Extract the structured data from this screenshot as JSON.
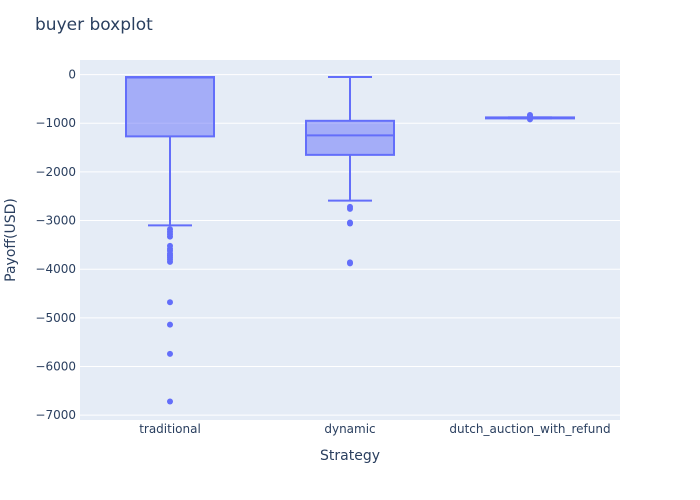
{
  "chart_data": {
    "type": "box",
    "title": "buyer boxplot",
    "xlabel": "Strategy",
    "ylabel": "Payoff(USD)",
    "categories": [
      "traditional",
      "dynamic",
      "dutch_auction_with_refund"
    ],
    "ylim": [
      -7100,
      300
    ],
    "yticks": [
      0,
      -1000,
      -2000,
      -3000,
      -4000,
      -5000,
      -6000,
      -7000
    ],
    "ytick_labels": [
      "0",
      "−1000",
      "−2000",
      "−3000",
      "−4000",
      "−5000",
      "−6000",
      "−7000"
    ],
    "grid": true,
    "boxes": [
      {
        "category": "traditional",
        "q1": -1270,
        "median": -60,
        "q3": -50,
        "lower_whisker": -3100,
        "upper_whisker": -50,
        "outliers": [
          -3180,
          -3230,
          -3280,
          -3330,
          -3520,
          -3580,
          -3620,
          -3680,
          -3720,
          -3760,
          -3800,
          -3850,
          -4680,
          -5140,
          -5740,
          -6720
        ]
      },
      {
        "category": "dynamic",
        "q1": -1650,
        "median": -1250,
        "q3": -950,
        "lower_whisker": -2590,
        "upper_whisker": -50,
        "outliers": [
          -2720,
          -2760,
          -3040,
          -3060,
          -3860,
          -3880
        ]
      },
      {
        "category": "dutch_auction_with_refund",
        "q1": -900,
        "median": -890,
        "q3": -880,
        "lower_whisker": -900,
        "upper_whisker": -880,
        "outliers": [
          -830,
          -850,
          -920
        ]
      }
    ],
    "colors": {
      "box_line": "#636efa",
      "box_fill": "rgba(99,110,250,0.5)",
      "plot_bg": "#e5ecf6",
      "grid": "#ffffff",
      "text": "#2a3f5f"
    }
  }
}
